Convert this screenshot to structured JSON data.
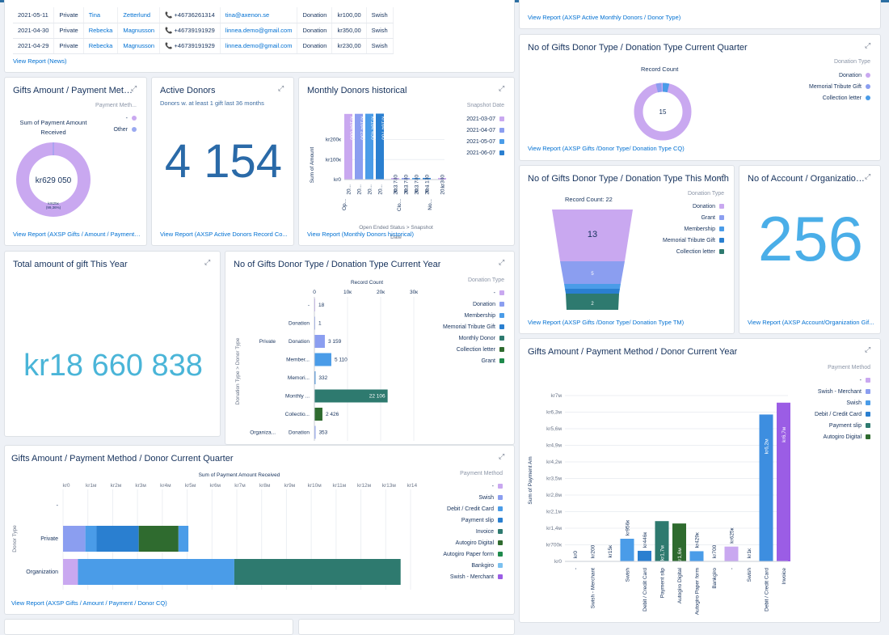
{
  "news": {
    "rows": [
      {
        "date": "2021-05-11",
        "type": "Private",
        "first": "Tina",
        "last": "Zetterlund",
        "phone": "+46736261314",
        "email": "tina@axenon.se",
        "kind": "Donation",
        "amount": "kr100,00",
        "method": "Swish"
      },
      {
        "date": "2021-04-30",
        "type": "Private",
        "first": "Rebecka",
        "last": "Magnusson",
        "phone": "+46739191929",
        "email": "linnea.demo@gmail.com",
        "kind": "Donation",
        "amount": "kr350,00",
        "method": "Swish"
      },
      {
        "date": "2021-04-29",
        "type": "Private",
        "first": "Rebecka",
        "last": "Magnusson",
        "phone": "+46739191929",
        "email": "linnea.demo@gmail.com",
        "kind": "Donation",
        "amount": "kr230,00",
        "method": "Swish"
      }
    ],
    "link": "View Report (News)"
  },
  "active_monthly": {
    "link": "View Report (AXSP Active Monthly Donors / Donor Type)"
  },
  "gifts_pm": {
    "title": "Gifts Amount / Payment Metho...",
    "label": "Sum of Payment Amount Received",
    "center": "kr629 050",
    "slice_label": "kr625к",
    "slice_pct": "(99,36%)",
    "legend_head": "Payment Meth...",
    "legend": [
      {
        "name": "-",
        "color": "#c9a8f0"
      },
      {
        "name": "Other",
        "color": "#9aa9f0"
      }
    ],
    "link": "View Report (AXSP Gifts / Amount / Payment ..."
  },
  "active_donors": {
    "title": "Active Donors",
    "subtitle": "Donors w. at least 1 gift last 36 months",
    "value": "4 154",
    "link": "View Report (AXSP Active Donors Record Co..."
  },
  "monthly_hist": {
    "title": "Monthly Donors historical",
    "ylabel": "Sum of Amount",
    "yticks": [
      "kr200к",
      "kr100к",
      "kr0"
    ],
    "legend_head": "Snapshot Date",
    "legend": [
      {
        "name": "2021-03-07",
        "color": "#c9a8f0"
      },
      {
        "name": "2021-04-07",
        "color": "#8b9ef0"
      },
      {
        "name": "2021-05-07",
        "color": "#4a9ce8"
      },
      {
        "name": "2021-06-07",
        "color": "#2a7fd0"
      }
    ],
    "bars_a": [
      "kr164 000",
      "kr164 250",
      "kr164 450",
      "kr164 700"
    ],
    "bars_b": [
      "kr3 780",
      "kr3 780",
      "kr3 780",
      "kr4 130"
    ],
    "bar_c": "kr300",
    "xcats": [
      "20...",
      "20...",
      "20...",
      "20...",
      "20...",
      "20...",
      "20...",
      "20...",
      "20..."
    ],
    "xgroups": [
      "Op...",
      "Clo...",
      "No..."
    ],
    "xlabel": "Open Ended Status > Snapshot Date",
    "link": "View Report (Monthly Donors historical)"
  },
  "gifts_cq_donut": {
    "title": "No of Gifts Donor Type / Donation Type Current Quarter",
    "label": "Record Count",
    "center": "15",
    "legend_head": "Donation Type",
    "legend": [
      {
        "name": "Donation",
        "color": "#c9a8f0"
      },
      {
        "name": "Memorial Tribute Gift",
        "color": "#8b9ef0"
      },
      {
        "name": "Collection letter",
        "color": "#4a9ce8"
      }
    ],
    "link": "View Report (AXSP Gifts /Donor Type/ Donation Type CQ)"
  },
  "gifts_tm": {
    "title": "No of Gifts Donor Type / Donation Type This Month",
    "label": "Record Count: 22",
    "v1": "13",
    "v2": "5",
    "v3": "2",
    "legend_head": "Donation Type",
    "legend": [
      {
        "name": "Donation",
        "color": "#c9a8f0"
      },
      {
        "name": "Grant",
        "color": "#8b9ef0"
      },
      {
        "name": "Membership",
        "color": "#4a9ce8"
      },
      {
        "name": "Memorial Tribute Gift",
        "color": "#2a7fd0"
      },
      {
        "name": "Collection letter",
        "color": "#2e7a6f"
      }
    ],
    "link": "View Report (AXSP Gifts /Donor Type/ Donation Type TM)"
  },
  "accounts": {
    "title": "No of Account / Organization ...",
    "value": "256",
    "link": "View Report (AXSP Account/Organization Gif..."
  },
  "total_year": {
    "title": "Total amount of gift This Year",
    "value": "kr18 660 838"
  },
  "gifts_cy_bar": {
    "title": "No of Gifts Donor Type / Donation Type Current Year",
    "xlabel": "Record Count",
    "xticks": [
      "0",
      "10к",
      "20к",
      "30к"
    ],
    "ylabel": "Donation Type > Donor Type",
    "legend_head": "Donation Type",
    "legend": [
      {
        "name": "-",
        "color": "#c9a8f0"
      },
      {
        "name": "Donation",
        "color": "#8b9ef0"
      },
      {
        "name": "Membership",
        "color": "#4a9ce8"
      },
      {
        "name": "Memorial Tribute Gift",
        "color": "#2a7fd0"
      },
      {
        "name": "Monthly Donor",
        "color": "#2e7a6f"
      },
      {
        "name": "Collection letter",
        "color": "#2f6b2f"
      },
      {
        "name": "Grant",
        "color": "#1f8a4c"
      }
    ],
    "groups": [
      "Private",
      "Organiza..."
    ],
    "rows": [
      {
        "group": "",
        "cat": "-",
        "value": "18"
      },
      {
        "group": "",
        "cat": "Donation",
        "value": "1"
      },
      {
        "group": "Private",
        "cat": "Donation",
        "value": "3 159"
      },
      {
        "group": "",
        "cat": "Member...",
        "value": "5 110"
      },
      {
        "group": "",
        "cat": "Memori...",
        "value": "332"
      },
      {
        "group": "",
        "cat": "Monthly ...",
        "value": "22 106"
      },
      {
        "group": "",
        "cat": "Collectio...",
        "value": "2 426"
      },
      {
        "group": "Organiza...",
        "cat": "Donation",
        "value": "353"
      }
    ]
  },
  "gifts_cq_bar": {
    "title": "Gifts Amount / Payment Method / Donor Current Quarter",
    "xlabel": "Sum of Payment Amount Received",
    "xticks": [
      "kr0",
      "kr1м",
      "kr2м",
      "kr3м",
      "kr4м",
      "kr5м",
      "kr6м",
      "kr7м",
      "kr8м",
      "kr9м",
      "kr10м",
      "kr11м",
      "kr12м",
      "kr13м",
      "kr14м"
    ],
    "ylabel": "Donor Type",
    "cats": [
      "-",
      "Private",
      "Organization"
    ],
    "legend_head": "Payment Method",
    "legend": [
      {
        "name": "-",
        "color": "#c9a8f0"
      },
      {
        "name": "Swish",
        "color": "#8b9ef0"
      },
      {
        "name": "Debit / Credit Card",
        "color": "#4a9ce8"
      },
      {
        "name": "Payment slip",
        "color": "#2a7fd0"
      },
      {
        "name": "Invoice",
        "color": "#2e7a6f"
      },
      {
        "name": "Autogiro Digital",
        "color": "#2f6b2f"
      },
      {
        "name": "Autogiro Paper form",
        "color": "#1f8a4c"
      },
      {
        "name": "Bankgiro",
        "color": "#7cc1f0"
      },
      {
        "name": "Swish - Merchant",
        "color": "#9b5de5"
      }
    ],
    "link": "View Report (AXSP Gifts / Amount / Payment / Donor CQ)"
  },
  "gifts_cy_col": {
    "title": "Gifts Amount / Payment Method / Donor Current Year",
    "ylabel": "Sum of Payment Am",
    "yticks": [
      "kr7м",
      "kr6,3м",
      "kr5,6м",
      "kr4,9м",
      "kr4,2м",
      "kr3,5м",
      "kr2,8м",
      "kr2,1м",
      "kr1,4м",
      "kr700к",
      "kr0"
    ],
    "legend_head": "Payment Method",
    "legend": [
      {
        "name": "-",
        "color": "#c9a8f0"
      },
      {
        "name": "Swish - Merchant",
        "color": "#8b9ef0"
      },
      {
        "name": "Swish",
        "color": "#4a9ce8"
      },
      {
        "name": "Debit / Credit Card",
        "color": "#2a7fd0"
      },
      {
        "name": "Payment slip",
        "color": "#2e7a6f"
      },
      {
        "name": "Autogiro Digital",
        "color": "#2f6b2f"
      }
    ],
    "bars": [
      {
        "cat": "-",
        "label": "kr0"
      },
      {
        "cat": "Swish - Merchant",
        "label": "kr200"
      },
      {
        "cat": "",
        "label": "kr15к"
      },
      {
        "cat": "Swish",
        "label": "kr956к"
      },
      {
        "cat": "Debit / Credit Card",
        "label": "kr446к"
      },
      {
        "cat": "Payment slip",
        "label": "kr1,7м"
      },
      {
        "cat": "Autogiro Digital",
        "label": "kr1,6м"
      },
      {
        "cat": "Autogiro Paper form",
        "label": "kr429к"
      },
      {
        "cat": "Bankgiro",
        "label": "kr700"
      },
      {
        "cat": "-",
        "label": "kr625к"
      },
      {
        "cat": "Swish",
        "label": "kr1к"
      },
      {
        "cat": "Debit / Credit Card",
        "label": "kr6,2м"
      },
      {
        "cat": "Invoice",
        "label": "kr6,7м"
      }
    ]
  },
  "chart_data": [
    {
      "type": "pie",
      "title": "Gifts Amount / Payment Metho...",
      "categories": [
        "-",
        "Other"
      ],
      "values": [
        625000,
        4050
      ],
      "label": "Sum of Payment Amount Received"
    },
    {
      "type": "bar",
      "title": "Monthly Donors historical",
      "categories": [
        "Op... 2021-03-07",
        "Op... 2021-04-07",
        "Op... 2021-05-07",
        "Op... 2021-06-07",
        "Clo... 2021-03-07",
        "Clo... 2021-04-07",
        "Clo... 2021-05-07",
        "Clo... 2021-06-07",
        "No..."
      ],
      "values": [
        164000,
        164250,
        164450,
        164700,
        3780,
        3780,
        3780,
        4130,
        300
      ],
      "ylim": [
        0,
        200000
      ],
      "ylabel": "Sum of Amount",
      "xlabel": "Open Ended Status > Snapshot Date"
    },
    {
      "type": "pie",
      "title": "No of Gifts Donor Type / Donation Type Current Quarter",
      "categories": [
        "Donation",
        "Memorial Tribute Gift",
        "Collection letter"
      ],
      "values": [
        14,
        0.5,
        0.5
      ],
      "total": 15
    },
    {
      "type": "bar",
      "title": "No of Gifts Donor Type / Donation Type This Month",
      "categories": [
        "Donation",
        "Grant",
        "Membership",
        "Memorial Tribute Gift",
        "Collection letter"
      ],
      "values": [
        13,
        5,
        1,
        1,
        2
      ],
      "total": 22
    },
    {
      "type": "bar",
      "title": "No of Gifts Donor Type / Donation Type Current Year",
      "categories": [
        "-",
        "Donation",
        "Private Donation",
        "Private Member...",
        "Private Memori...",
        "Private Monthly ...",
        "Private Collectio...",
        "Organiza... Donation"
      ],
      "values": [
        18,
        1,
        3159,
        5110,
        332,
        22106,
        2426,
        353
      ],
      "xlim": [
        0,
        30000
      ],
      "xlabel": "Record Count"
    },
    {
      "type": "bar",
      "title": "Gifts Amount / Payment Method / Donor Current Quarter",
      "categories": [
        "-",
        "Private",
        "Organization"
      ],
      "series": [
        {
          "name": "-",
          "values": [
            0,
            0,
            600000
          ]
        },
        {
          "name": "Swish",
          "values": [
            0,
            900000,
            0
          ]
        },
        {
          "name": "Debit / Credit Card",
          "values": [
            0,
            450000,
            6300000
          ]
        },
        {
          "name": "Payment slip",
          "values": [
            0,
            1700000,
            0
          ]
        },
        {
          "name": "Invoice",
          "values": [
            0,
            0,
            6700000
          ]
        },
        {
          "name": "Autogiro Digital",
          "values": [
            0,
            1600000,
            0
          ]
        },
        {
          "name": "Bankgiro",
          "values": [
            0,
            400000,
            0
          ]
        }
      ],
      "xlim": [
        0,
        14000000
      ],
      "xlabel": "Sum of Payment Amount Received",
      "ylabel": "Donor Type"
    },
    {
      "type": "bar",
      "title": "Gifts Amount / Payment Method / Donor Current Year",
      "categories": [
        "-",
        "Swish - Merchant",
        "",
        "Swish",
        "Debit / Credit Card",
        "Payment slip",
        "Autogiro Digital",
        "Autogiro Paper form",
        "Bankgiro",
        "-",
        "Swish",
        "Debit / Credit Card",
        "Invoice"
      ],
      "values": [
        0,
        200,
        15000,
        956000,
        446000,
        1700000,
        1600000,
        429000,
        700,
        625000,
        1000,
        6200000,
        6700000
      ],
      "ylim": [
        0,
        7000000
      ],
      "ylabel": "Sum of Payment Am"
    }
  ]
}
